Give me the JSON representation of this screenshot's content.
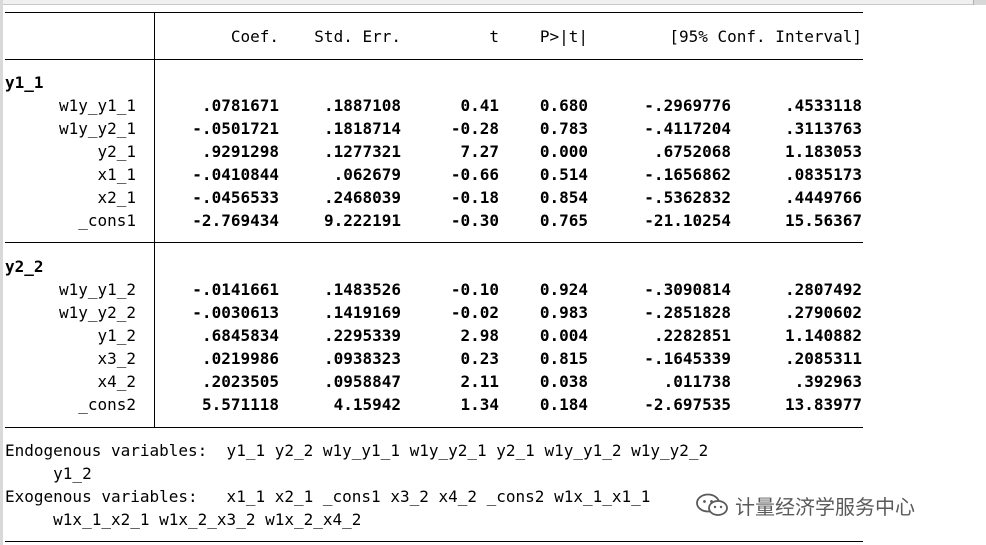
{
  "header": {
    "coef": "Coef.",
    "stderr": "Std. Err.",
    "t": "t",
    "p": "P>|t|",
    "ci": "[95% Conf. Interval]"
  },
  "equations": [
    {
      "name": "y1_1",
      "rows": [
        {
          "var": "w1y_y1_1",
          "coef": ".0781671",
          "se": ".1887108",
          "t": "0.41",
          "p": "0.680",
          "lo": "-.2969776",
          "hi": ".4533118"
        },
        {
          "var": "w1y_y2_1",
          "coef": "-.0501721",
          "se": ".1818714",
          "t": "-0.28",
          "p": "0.783",
          "lo": "-.4117204",
          "hi": ".3113763"
        },
        {
          "var": "y2_1",
          "coef": ".9291298",
          "se": ".1277321",
          "t": "7.27",
          "p": "0.000",
          "lo": ".6752068",
          "hi": "1.183053"
        },
        {
          "var": "x1_1",
          "coef": "-.0410844",
          "se": ".062679",
          "t": "-0.66",
          "p": "0.514",
          "lo": "-.1656862",
          "hi": ".0835173"
        },
        {
          "var": "x2_1",
          "coef": "-.0456533",
          "se": ".2468039",
          "t": "-0.18",
          "p": "0.854",
          "lo": "-.5362832",
          "hi": ".4449766"
        },
        {
          "var": "_cons1",
          "coef": "-2.769434",
          "se": "9.222191",
          "t": "-0.30",
          "p": "0.765",
          "lo": "-21.10254",
          "hi": "15.56367"
        }
      ]
    },
    {
      "name": "y2_2",
      "rows": [
        {
          "var": "w1y_y1_2",
          "coef": "-.0141661",
          "se": ".1483526",
          "t": "-0.10",
          "p": "0.924",
          "lo": "-.3090814",
          "hi": ".2807492"
        },
        {
          "var": "w1y_y2_2",
          "coef": "-.0030613",
          "se": ".1419169",
          "t": "-0.02",
          "p": "0.983",
          "lo": "-.2851828",
          "hi": ".2790602"
        },
        {
          "var": "y1_2",
          "coef": ".6845834",
          "se": ".2295339",
          "t": "2.98",
          "p": "0.004",
          "lo": ".2282851",
          "hi": "1.140882"
        },
        {
          "var": "x3_2",
          "coef": ".0219986",
          "se": ".0938323",
          "t": "0.23",
          "p": "0.815",
          "lo": "-.1645339",
          "hi": ".2085311"
        },
        {
          "var": "x4_2",
          "coef": ".2023505",
          "se": ".0958847",
          "t": "2.11",
          "p": "0.038",
          "lo": ".011738",
          "hi": ".392963"
        },
        {
          "var": "_cons2",
          "coef": "5.571118",
          "se": "4.15942",
          "t": "1.34",
          "p": "0.184",
          "lo": "-2.697535",
          "hi": "13.83977"
        }
      ]
    }
  ],
  "notes": {
    "endog_line1": "Endogenous variables:  y1_1 y2_2 w1y_y1_1 w1y_y2_1 y2_1 w1y_y1_2 w1y_y2_2",
    "endog_line2": "     y1_2",
    "exog_line1": "Exogenous variables:   x1_1 x2_1 _cons1 x3_2 x4_2 _cons2 w1x_1_x1_1",
    "exog_line2": "     w1x_1_x2_1 w1x_2_x3_2 w1x_2_x4_2"
  },
  "watermark": {
    "text": "计量经济学服务中心",
    "icon": "wechat-icon",
    "color": "#5a5a5a"
  }
}
